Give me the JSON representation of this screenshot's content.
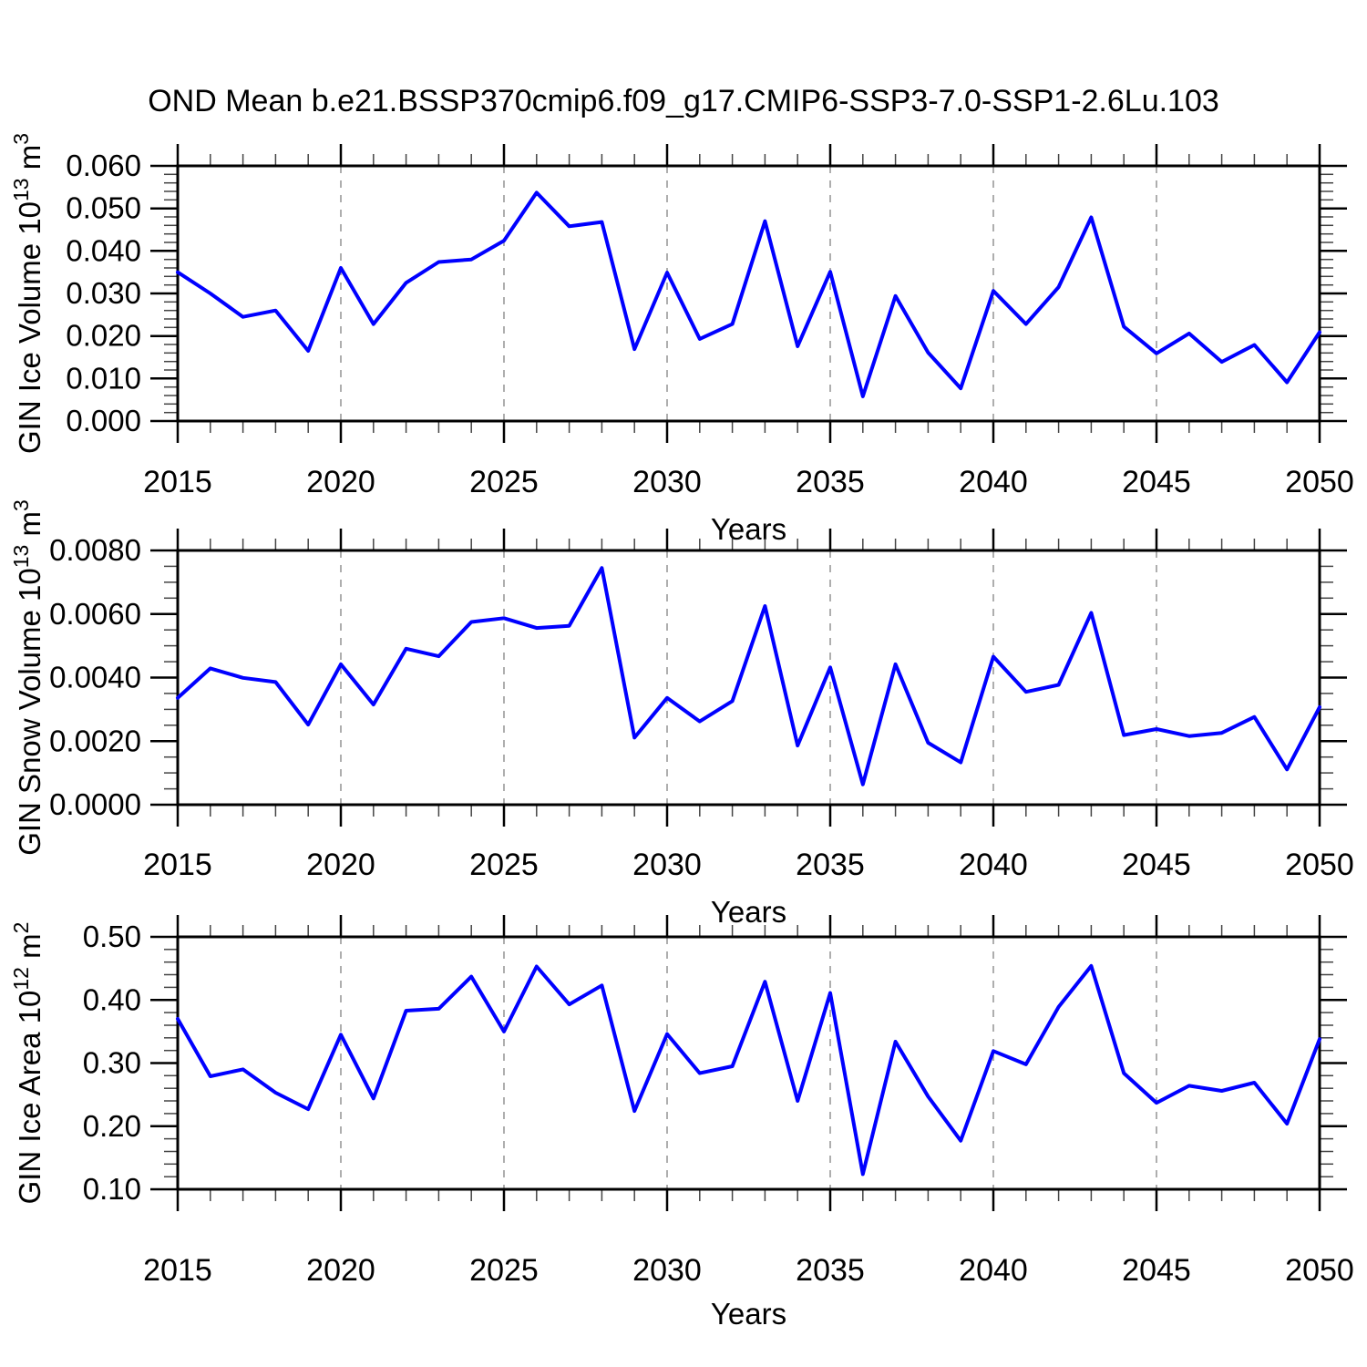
{
  "page": {
    "title": "OND Mean b.e21.BSSP370cmip6.f09_g17.CMIP6-SSP3-7.0-SSP1-2.6Lu.103"
  },
  "colors": {
    "line": "#0000ff",
    "grid": "#9a9a9a",
    "axis": "#000000",
    "minor_tick": "#444444"
  },
  "axis": {
    "xlabel": "Years",
    "xlim": [
      2015,
      2050
    ],
    "xticks": [
      2015,
      2020,
      2025,
      2030,
      2035,
      2040,
      2045,
      2050
    ],
    "xtick_step": 5,
    "xminor_step": 1,
    "grid_years": [
      2020,
      2025,
      2030,
      2035,
      2040,
      2045
    ],
    "grid_style": "vertical-dashed"
  },
  "chart_data": [
    {
      "type": "line",
      "ylabel": "GIN Ice Volume 10^13 m^3",
      "ylabel_parts": [
        {
          "t": "GIN Ice Volume 10"
        },
        {
          "sup": "13"
        },
        {
          "t": " m"
        },
        {
          "sup": "3"
        }
      ],
      "ylim": [
        0.0,
        0.06
      ],
      "ytick_values": [
        0.0,
        0.01,
        0.02,
        0.03,
        0.04,
        0.05,
        0.06
      ],
      "ytick_labels": [
        "0.000",
        "0.010",
        "0.020",
        "0.030",
        "0.040",
        "0.050",
        "0.060"
      ],
      "yminor_step": 0.002,
      "x": [
        2015,
        2016,
        2017,
        2018,
        2019,
        2020,
        2021,
        2022,
        2023,
        2024,
        2025,
        2026,
        2027,
        2028,
        2029,
        2030,
        2031,
        2032,
        2033,
        2034,
        2035,
        2036,
        2037,
        2038,
        2039,
        2040,
        2041,
        2042,
        2043,
        2044,
        2045,
        2046,
        2047,
        2048,
        2049,
        2050
      ],
      "values": [
        0.035,
        0.03,
        0.0245,
        0.026,
        0.0165,
        0.036,
        0.0228,
        0.0325,
        0.0374,
        0.038,
        0.0424,
        0.0537,
        0.0458,
        0.0468,
        0.0169,
        0.0349,
        0.0193,
        0.0228,
        0.047,
        0.0176,
        0.0351,
        0.0058,
        0.0294,
        0.0161,
        0.0077,
        0.0306,
        0.0228,
        0.0315,
        0.0479,
        0.0222,
        0.0159,
        0.0206,
        0.0139,
        0.0179,
        0.0091,
        0.0209
      ]
    },
    {
      "type": "line",
      "ylabel": "GIN Snow Volume 10^13 m^3",
      "ylabel_parts": [
        {
          "t": "GIN Snow Volume 10"
        },
        {
          "sup": "13"
        },
        {
          "t": " m"
        },
        {
          "sup": "3"
        }
      ],
      "ylim": [
        0.0,
        0.008
      ],
      "ytick_values": [
        0.0,
        0.002,
        0.004,
        0.006,
        0.008
      ],
      "ytick_labels": [
        "0.0000",
        "0.0020",
        "0.0040",
        "0.0060",
        "0.0080"
      ],
      "yminor_step": 0.0005,
      "x": [
        2015,
        2016,
        2017,
        2018,
        2019,
        2020,
        2021,
        2022,
        2023,
        2024,
        2025,
        2026,
        2027,
        2028,
        2029,
        2030,
        2031,
        2032,
        2033,
        2034,
        2035,
        2036,
        2037,
        2038,
        2039,
        2040,
        2041,
        2042,
        2043,
        2044,
        2045,
        2046,
        2047,
        2048,
        2049,
        2050
      ],
      "values": [
        0.00336,
        0.00429,
        0.00399,
        0.00386,
        0.00252,
        0.00442,
        0.00315,
        0.00491,
        0.00467,
        0.00575,
        0.00587,
        0.00556,
        0.00563,
        0.00745,
        0.00211,
        0.00336,
        0.00262,
        0.00326,
        0.00625,
        0.00186,
        0.00432,
        0.00064,
        0.00442,
        0.00195,
        0.00133,
        0.00466,
        0.00355,
        0.00377,
        0.00604,
        0.00219,
        0.00238,
        0.00216,
        0.00226,
        0.00276,
        0.00111,
        0.00307
      ]
    },
    {
      "type": "line",
      "ylabel": "GIN Ice Area 10^12 m^2",
      "ylabel_parts": [
        {
          "t": "GIN Ice Area 10"
        },
        {
          "sup": "12"
        },
        {
          "t": " m"
        },
        {
          "sup": "2"
        }
      ],
      "ylim": [
        0.1,
        0.5
      ],
      "ytick_values": [
        0.1,
        0.2,
        0.3,
        0.4,
        0.5
      ],
      "ytick_labels": [
        "0.10",
        "0.20",
        "0.30",
        "0.40",
        "0.50"
      ],
      "yminor_step": 0.02,
      "x": [
        2015,
        2016,
        2017,
        2018,
        2019,
        2020,
        2021,
        2022,
        2023,
        2024,
        2025,
        2026,
        2027,
        2028,
        2029,
        2030,
        2031,
        2032,
        2033,
        2034,
        2035,
        2036,
        2037,
        2038,
        2039,
        2040,
        2041,
        2042,
        2043,
        2044,
        2045,
        2046,
        2047,
        2048,
        2049,
        2050
      ],
      "values": [
        0.37,
        0.279,
        0.29,
        0.253,
        0.227,
        0.345,
        0.244,
        0.383,
        0.386,
        0.437,
        0.35,
        0.453,
        0.393,
        0.423,
        0.224,
        0.346,
        0.284,
        0.295,
        0.429,
        0.24,
        0.411,
        0.124,
        0.334,
        0.247,
        0.177,
        0.319,
        0.298,
        0.389,
        0.454,
        0.284,
        0.237,
        0.264,
        0.256,
        0.269,
        0.204,
        0.338
      ]
    }
  ]
}
